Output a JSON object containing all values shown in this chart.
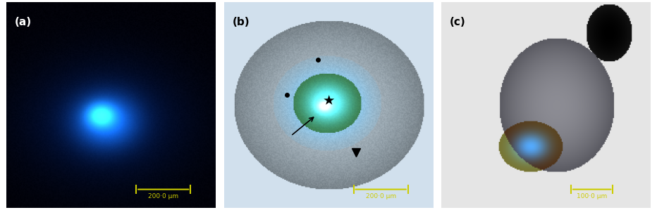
{
  "panels": [
    "a",
    "b",
    "c"
  ],
  "panel_labels": [
    "(a)",
    "(b)",
    "(c)"
  ],
  "scale_bars": [
    "200·0 μm",
    "200·0 μm",
    "100·0 μm"
  ],
  "scale_bar_color": "#CCCC00",
  "label_color": "#000000",
  "panel_a_bg": "#000814",
  "panel_b_bg": "#c8d8e8",
  "panel_c_bg": "#d8d8d8",
  "fig_width": 9.32,
  "fig_height": 2.99,
  "dpi": 100
}
